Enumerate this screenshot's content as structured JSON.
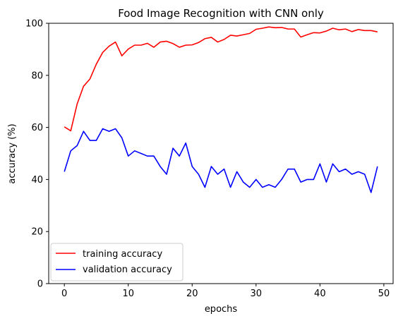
{
  "chart_data": {
    "type": "line",
    "title": "Food Image Recognition with CNN only",
    "xlabel": "epochs",
    "ylabel": "accuracy (%)",
    "xlim": [
      -2.45,
      51.45
    ],
    "ylim": [
      0,
      100
    ],
    "xticks": [
      0,
      10,
      20,
      30,
      40,
      50
    ],
    "yticks": [
      0,
      20,
      40,
      60,
      80,
      100
    ],
    "grid": false,
    "legend_position": "lower-left",
    "x": [
      0,
      1,
      2,
      3,
      4,
      5,
      6,
      7,
      8,
      9,
      10,
      11,
      12,
      13,
      14,
      15,
      16,
      17,
      18,
      19,
      20,
      21,
      22,
      23,
      24,
      25,
      26,
      27,
      28,
      29,
      30,
      31,
      32,
      33,
      34,
      35,
      36,
      37,
      38,
      39,
      40,
      41,
      42,
      43,
      44,
      45,
      46,
      47,
      48,
      49
    ],
    "series": [
      {
        "name": "training accuracy",
        "color": "#ff0000",
        "values": [
          60.2,
          58.7,
          69.0,
          75.8,
          78.6,
          84.3,
          88.8,
          91.2,
          92.8,
          87.5,
          90.1,
          91.6,
          91.6,
          92.3,
          90.8,
          92.8,
          93.1,
          92.2,
          90.8,
          91.6,
          91.7,
          92.6,
          94.1,
          94.6,
          92.8,
          93.8,
          95.4,
          95.1,
          95.6,
          96.1,
          97.7,
          98.1,
          98.6,
          98.3,
          98.4,
          97.8,
          97.8,
          94.7,
          95.6,
          96.4,
          96.3,
          97.0,
          98.1,
          97.5,
          97.8,
          96.8,
          97.6,
          97.2,
          97.2,
          96.7
        ]
      },
      {
        "name": "validation accuracy",
        "color": "#0000ff",
        "values": [
          43.0,
          51.0,
          53.0,
          58.5,
          55.0,
          55.0,
          59.5,
          58.5,
          59.5,
          56.0,
          49.0,
          51.0,
          50.0,
          49.0,
          49.0,
          45.0,
          42.0,
          52.0,
          49.0,
          54.0,
          45.0,
          42.0,
          37.0,
          45.0,
          42.0,
          44.0,
          37.0,
          43.0,
          39.0,
          37.0,
          40.0,
          37.0,
          38.0,
          37.0,
          40.0,
          44.0,
          44.0,
          39.0,
          40.0,
          40.0,
          46.0,
          39.0,
          46.0,
          43.0,
          44.0,
          42.0,
          43.0,
          42.0,
          35.0,
          45.0
        ]
      }
    ]
  }
}
